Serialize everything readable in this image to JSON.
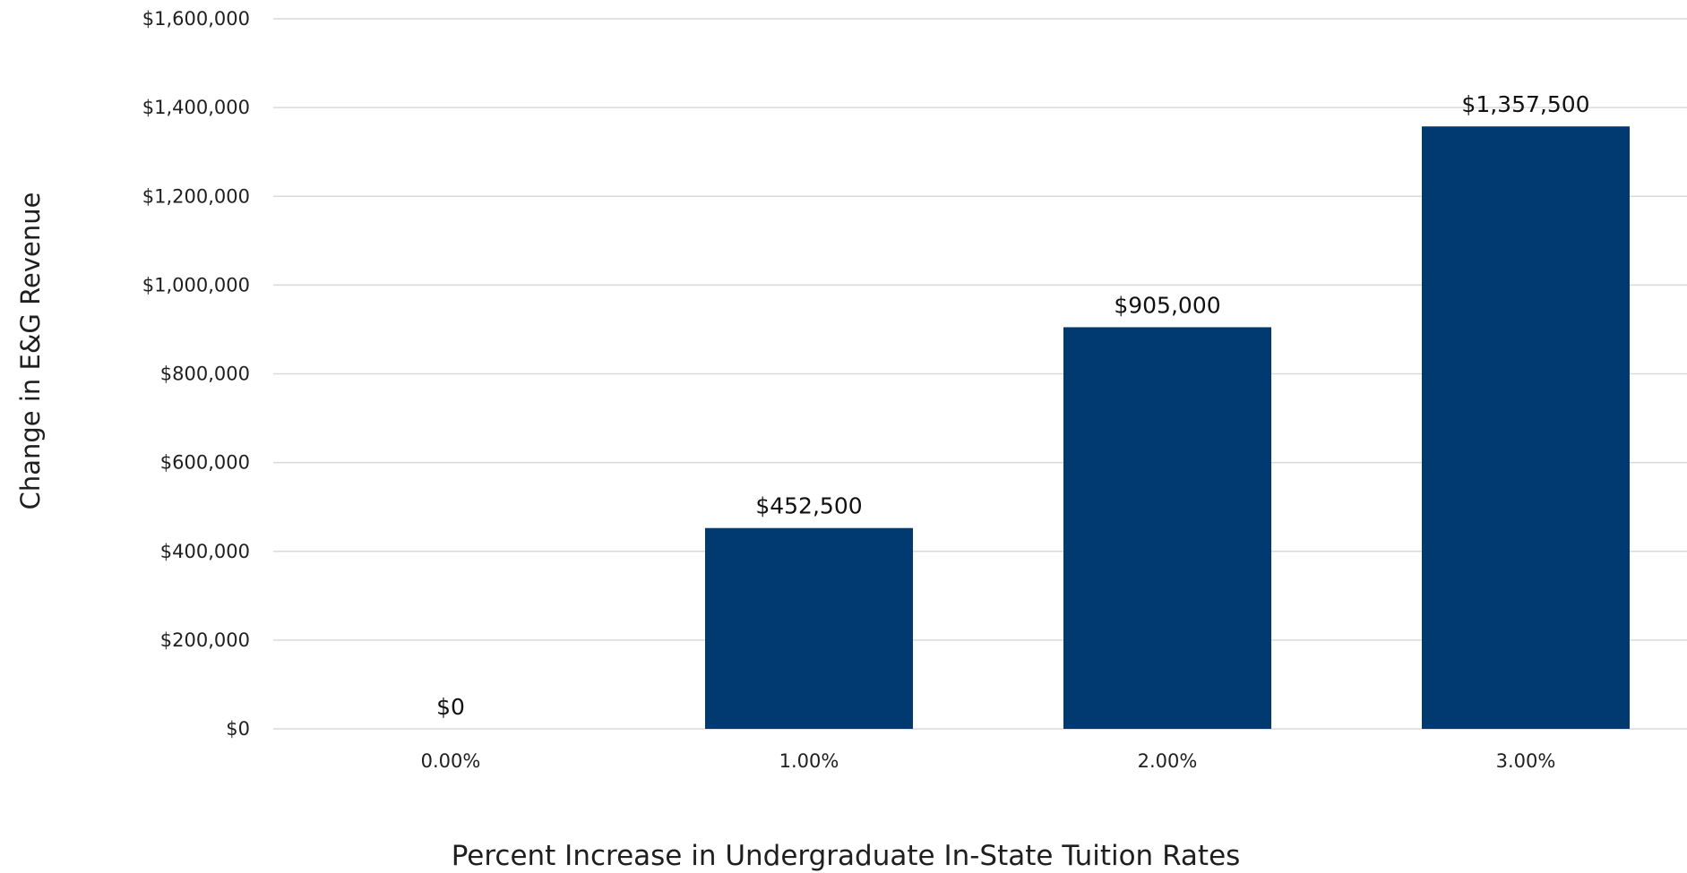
{
  "chart_data": {
    "type": "bar",
    "title": "",
    "xlabel": "Percent Increase in Undergraduate In-State Tuition Rates",
    "ylabel": "Change in E&G Revenue",
    "categories": [
      "0.00%",
      "1.00%",
      "2.00%",
      "3.00%"
    ],
    "values": [
      0,
      452500,
      905000,
      1357500
    ],
    "data_labels": [
      "$0",
      "$452,500",
      "$905,000",
      "$1,357,500"
    ],
    "ylim": [
      0,
      1600000
    ],
    "y_ticks": [
      0,
      200000,
      400000,
      600000,
      800000,
      1000000,
      1200000,
      1400000,
      1600000
    ],
    "y_tick_labels": [
      "$0",
      "$200,000",
      "$400,000",
      "$600,000",
      "$800,000",
      "$1,000,000",
      "$1,200,000",
      "$1,400,000",
      "$1,600,000"
    ],
    "grid": true,
    "legend": "none",
    "colors": {
      "bar": "#003a70",
      "grid": "#d9d9d9",
      "text": "#1f1f1f"
    }
  }
}
